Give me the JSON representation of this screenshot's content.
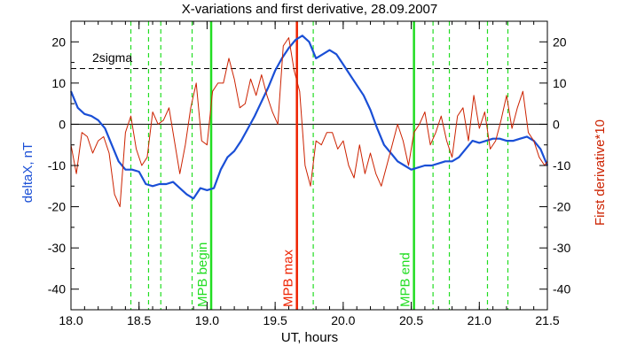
{
  "chart_data": {
    "type": "line",
    "title": "X-variations and first derivative, 28.09.2007",
    "xlabel": "UT, hours",
    "ylabel_left": "deltaX, nT",
    "ylabel_right": "First derivative*10",
    "xlim": [
      18.0,
      21.5
    ],
    "ylim": [
      -45,
      25
    ],
    "x_ticks": [
      "18.0",
      "18.5",
      "19.0",
      "19.5",
      "20.0",
      "20.5",
      "21.0",
      "21.5"
    ],
    "y_ticks": [
      "20",
      "10",
      "0",
      "-10",
      "-20",
      "-30",
      "-40"
    ],
    "grid": false,
    "colors": {
      "deltaX": "#1a4fd6",
      "derivative": "#cc2200",
      "boundary": "#22dd22",
      "max": "#ee2200",
      "axes": "#000000"
    },
    "threshold": {
      "label": "2sigma",
      "value": 13.5
    },
    "zero_line": 0,
    "vertical_lines": [
      {
        "x": 19.03,
        "label": "MPB begin",
        "kind": "boundary"
      },
      {
        "x": 19.66,
        "label": "MPB max",
        "kind": "max"
      },
      {
        "x": 20.52,
        "label": "MPB end",
        "kind": "boundary"
      }
    ],
    "dashed_markers": [
      18.44,
      18.57,
      18.66,
      18.89,
      19.78,
      20.66,
      20.78,
      21.06,
      21.21
    ],
    "series": [
      {
        "name": "deltaX",
        "axis": "left",
        "x": [
          18.0,
          18.05,
          18.1,
          18.15,
          18.2,
          18.25,
          18.3,
          18.35,
          18.4,
          18.45,
          18.5,
          18.55,
          18.6,
          18.65,
          18.7,
          18.75,
          18.8,
          18.85,
          18.9,
          18.95,
          19.0,
          19.05,
          19.1,
          19.15,
          19.2,
          19.25,
          19.3,
          19.35,
          19.4,
          19.45,
          19.5,
          19.55,
          19.6,
          19.65,
          19.7,
          19.75,
          19.8,
          19.85,
          19.9,
          19.95,
          20.0,
          20.05,
          20.1,
          20.15,
          20.2,
          20.25,
          20.3,
          20.35,
          20.4,
          20.45,
          20.5,
          20.55,
          20.6,
          20.65,
          20.7,
          20.75,
          20.8,
          20.85,
          20.9,
          20.95,
          21.0,
          21.05,
          21.1,
          21.15,
          21.2,
          21.25,
          21.3,
          21.35,
          21.4,
          21.45,
          21.5
        ],
        "values": [
          8,
          4,
          2.5,
          2,
          1,
          -1,
          -5,
          -9,
          -11,
          -11,
          -11.5,
          -14.5,
          -15,
          -14.5,
          -14.5,
          -14,
          -15.5,
          -17,
          -18,
          -15.5,
          -16,
          -15.5,
          -11,
          -8,
          -6.5,
          -4,
          -1,
          2,
          5.5,
          9,
          13,
          16,
          18.5,
          20.5,
          21.5,
          20,
          16,
          17,
          18,
          17,
          14.5,
          12,
          9.5,
          7,
          3.5,
          -1,
          -5,
          -7,
          -9,
          -10,
          -11,
          -10.5,
          -10,
          -10,
          -9.5,
          -9,
          -9,
          -8,
          -6,
          -4,
          -4.5,
          -4,
          -3.5,
          -3.5,
          -4,
          -4,
          -3.5,
          -3,
          -4,
          -6,
          -10
        ]
      },
      {
        "name": "First derivative*10",
        "axis": "right",
        "x": [
          18.0,
          18.04,
          18.08,
          18.12,
          18.16,
          18.2,
          18.24,
          18.28,
          18.32,
          18.36,
          18.4,
          18.44,
          18.48,
          18.52,
          18.56,
          18.6,
          18.64,
          18.68,
          18.72,
          18.76,
          18.8,
          18.84,
          18.88,
          18.92,
          18.96,
          19.0,
          19.04,
          19.08,
          19.12,
          19.16,
          19.2,
          19.24,
          19.28,
          19.32,
          19.36,
          19.4,
          19.44,
          19.48,
          19.52,
          19.56,
          19.6,
          19.64,
          19.68,
          19.72,
          19.76,
          19.8,
          19.84,
          19.88,
          19.92,
          19.96,
          20.0,
          20.04,
          20.08,
          20.12,
          20.16,
          20.2,
          20.24,
          20.28,
          20.32,
          20.36,
          20.4,
          20.44,
          20.48,
          20.52,
          20.56,
          20.6,
          20.64,
          20.68,
          20.72,
          20.76,
          20.8,
          20.84,
          20.88,
          20.92,
          20.96,
          21.0,
          21.04,
          21.08,
          21.12,
          21.16,
          21.2,
          21.24,
          21.28,
          21.32,
          21.36,
          21.4,
          21.44,
          21.48,
          21.5
        ],
        "values": [
          -5,
          -12,
          -2,
          -3,
          -7,
          -4,
          -3,
          -7,
          -17,
          -20,
          -2,
          2,
          -6,
          -10,
          -8,
          3,
          0,
          1,
          4,
          -4,
          -12,
          -5,
          4,
          10,
          -4,
          -5,
          8,
          10,
          10,
          16,
          11,
          4,
          5,
          11,
          7,
          12,
          7,
          3,
          0,
          19,
          21,
          13,
          8,
          -10,
          -15,
          -4,
          -5,
          -2,
          -2,
          -6,
          -4,
          -10,
          -13,
          -5,
          -12,
          -7,
          -12,
          -15,
          -10,
          -5,
          0,
          -4,
          -10,
          -2,
          0,
          3,
          -5,
          -2,
          2,
          -4,
          -8,
          2,
          4,
          -4,
          7,
          -1,
          3,
          -6,
          -4,
          1,
          7,
          -1,
          4,
          8,
          -2,
          -4,
          -8,
          -10,
          -9
        ]
      }
    ]
  }
}
